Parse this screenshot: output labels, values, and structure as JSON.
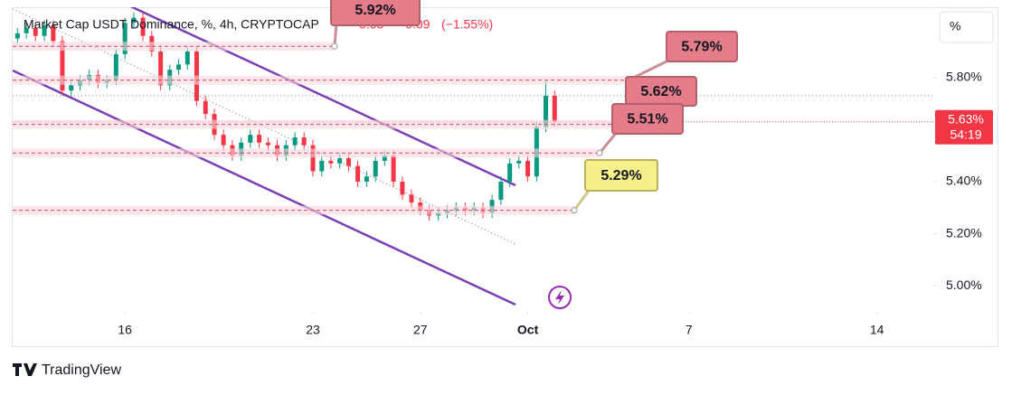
{
  "chart_data": {
    "type": "candlestick",
    "header": {
      "symbol": "Market Cap USDT Dominance, %, 4h, CRYPTOCAP",
      "last": "5.63",
      "change": "−0.09",
      "change_pct": "(−1.55%)"
    },
    "price_label": "5.63%",
    "countdown": "54:19",
    "unit_button": "%",
    "brand": "TradingView",
    "up_color": "#089981",
    "down_color": "#f23645",
    "x": [
      12,
      12.33,
      12.67,
      13,
      13.33,
      13.67,
      14,
      14.33,
      14.67,
      15,
      15.33,
      15.67,
      16,
      16.33,
      16.67,
      17,
      17.33,
      17.67,
      18,
      18.33,
      18.67,
      19,
      19.33,
      19.67,
      20,
      20.33,
      20.67,
      21,
      21.33,
      21.67,
      22,
      22.33,
      22.67,
      23,
      23.33,
      23.67,
      24,
      24.33,
      24.67,
      25,
      25.33,
      25.67,
      26,
      26.33,
      26.67,
      27,
      27.33,
      27.67,
      28,
      28.33,
      28.67,
      29,
      29.33,
      29.67,
      30,
      30.33,
      30.67,
      31,
      31.33,
      31.67,
      32
    ],
    "ohlc": [
      [
        5.95,
        5.99,
        5.93,
        5.97
      ],
      [
        5.97,
        6.01,
        5.95,
        5.99
      ],
      [
        5.99,
        6.01,
        5.94,
        5.96
      ],
      [
        5.96,
        6.02,
        5.94,
        6.0
      ],
      [
        6.0,
        6.02,
        5.92,
        5.94
      ],
      [
        5.94,
        5.96,
        5.73,
        5.75
      ],
      [
        5.75,
        5.79,
        5.73,
        5.77
      ],
      [
        5.77,
        5.81,
        5.75,
        5.79
      ],
      [
        5.79,
        5.83,
        5.77,
        5.81
      ],
      [
        5.81,
        5.83,
        5.76,
        5.78
      ],
      [
        5.78,
        5.81,
        5.76,
        5.79
      ],
      [
        5.79,
        5.91,
        5.77,
        5.89
      ],
      [
        5.89,
        6.03,
        5.87,
        6.01
      ],
      [
        6.01,
        6.05,
        5.99,
        6.03
      ],
      [
        6.03,
        6.05,
        5.94,
        5.96
      ],
      [
        5.96,
        5.98,
        5.88,
        5.9
      ],
      [
        5.9,
        5.92,
        5.75,
        5.77
      ],
      [
        5.77,
        5.85,
        5.75,
        5.83
      ],
      [
        5.83,
        5.87,
        5.81,
        5.85
      ],
      [
        5.85,
        5.92,
        5.83,
        5.9
      ],
      [
        5.9,
        5.92,
        5.69,
        5.71
      ],
      [
        5.71,
        5.73,
        5.64,
        5.66
      ],
      [
        5.66,
        5.68,
        5.56,
        5.58
      ],
      [
        5.58,
        5.6,
        5.52,
        5.54
      ],
      [
        5.54,
        5.56,
        5.48,
        5.5
      ],
      [
        5.5,
        5.57,
        5.48,
        5.55
      ],
      [
        5.55,
        5.6,
        5.53,
        5.58
      ],
      [
        5.58,
        5.6,
        5.53,
        5.55
      ],
      [
        5.55,
        5.57,
        5.52,
        5.54
      ],
      [
        5.54,
        5.56,
        5.48,
        5.5
      ],
      [
        5.5,
        5.56,
        5.48,
        5.54
      ],
      [
        5.54,
        5.59,
        5.52,
        5.57
      ],
      [
        5.57,
        5.59,
        5.52,
        5.54
      ],
      [
        5.54,
        5.56,
        5.42,
        5.44
      ],
      [
        5.44,
        5.5,
        5.42,
        5.48
      ],
      [
        5.48,
        5.5,
        5.45,
        5.47
      ],
      [
        5.47,
        5.51,
        5.45,
        5.49
      ],
      [
        5.49,
        5.51,
        5.44,
        5.46
      ],
      [
        5.46,
        5.48,
        5.38,
        5.4
      ],
      [
        5.4,
        5.44,
        5.38,
        5.42
      ],
      [
        5.42,
        5.5,
        5.4,
        5.48
      ],
      [
        5.48,
        5.52,
        5.46,
        5.5
      ],
      [
        5.5,
        5.52,
        5.38,
        5.4
      ],
      [
        5.4,
        5.42,
        5.33,
        5.35
      ],
      [
        5.35,
        5.37,
        5.3,
        5.32
      ],
      [
        5.32,
        5.34,
        5.27,
        5.29
      ],
      [
        5.29,
        5.31,
        5.25,
        5.27
      ],
      [
        5.27,
        5.3,
        5.25,
        5.28
      ],
      [
        5.28,
        5.31,
        5.26,
        5.29
      ],
      [
        5.29,
        5.32,
        5.27,
        5.3
      ],
      [
        5.3,
        5.32,
        5.27,
        5.29
      ],
      [
        5.29,
        5.32,
        5.27,
        5.3
      ],
      [
        5.3,
        5.32,
        5.26,
        5.28
      ],
      [
        5.28,
        5.35,
        5.26,
        5.33
      ],
      [
        5.33,
        5.42,
        5.31,
        5.4
      ],
      [
        5.4,
        5.49,
        5.38,
        5.47
      ],
      [
        5.47,
        5.5,
        5.45,
        5.48
      ],
      [
        5.48,
        5.5,
        5.4,
        5.42
      ],
      [
        5.42,
        5.63,
        5.4,
        5.61
      ],
      [
        5.61,
        5.79,
        5.59,
        5.73
      ],
      [
        5.73,
        5.75,
        5.61,
        5.63
      ]
    ],
    "xlim": [
      11.82,
      46.1
    ],
    "xticks": [
      16,
      23,
      27,
      {
        "value": 31,
        "label": "Oct"
      },
      {
        "value": 37,
        "label": "7"
      },
      {
        "value": 44,
        "label": "14"
      }
    ],
    "ylim": [
      4.9,
      6.07
    ],
    "yticks": [
      {
        "value": 5.0,
        "label": "5.00%"
      },
      {
        "value": 5.2,
        "label": "5.20%"
      },
      {
        "value": 5.4,
        "label": "5.40%"
      },
      {
        "value": 5.8,
        "label": "5.80%"
      }
    ],
    "annotations": [
      {
        "label": "5.92%",
        "value": 5.92
      },
      {
        "label": "5.79%",
        "value": 5.79
      },
      {
        "label": "5.62%",
        "value": 5.62
      },
      {
        "label": "5.51%",
        "value": 5.51
      },
      {
        "label": "5.29%",
        "value": 5.29
      }
    ]
  }
}
